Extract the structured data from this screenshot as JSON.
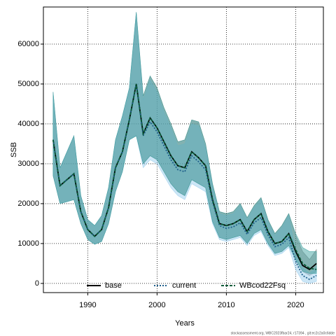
{
  "chart_data": {
    "type": "line",
    "x_label": "Years",
    "y_label": "SSB",
    "footnote": "stockassessment.org, WBC2023fbar24, r17394 , git:ec2c2a0c6dde",
    "x": [
      1985,
      1986,
      1987,
      1988,
      1989,
      1990,
      1991,
      1992,
      1993,
      1994,
      1995,
      1996,
      1997,
      1998,
      1999,
      2000,
      2001,
      2002,
      2003,
      2004,
      2005,
      2006,
      2007,
      2008,
      2009,
      2010,
      2011,
      2012,
      2013,
      2014,
      2015,
      2016,
      2017,
      2018,
      2019,
      2020,
      2021,
      2022,
      2023
    ],
    "xlim": [
      1983.6,
      2024.0
    ],
    "xticks": [
      1990,
      2000,
      2010,
      2020
    ],
    "ylim": [
      -2300,
      69300
    ],
    "yticks": [
      0,
      10000,
      20000,
      30000,
      40000,
      50000,
      60000
    ],
    "grid": true,
    "legend": "bottom",
    "series": [
      {
        "name": "base",
        "color": "#000000",
        "band_color": "#808080",
        "dash": "solid",
        "values": [
          36000,
          24500,
          26000,
          27500,
          18000,
          13500,
          11800,
          13500,
          19000,
          29000,
          33000,
          41000,
          50000,
          37500,
          41500,
          39000,
          35500,
          32000,
          29500,
          29000,
          33000,
          31500,
          29500,
          21000,
          15000,
          14500,
          15000,
          16000,
          13000,
          16000,
          17500,
          13000,
          10000,
          10500,
          12500,
          8000,
          4500,
          3500,
          5000
        ],
        "lower": [
          27000,
          20000,
          20500,
          21000,
          15000,
          11000,
          9800,
          10500,
          15000,
          23000,
          28000,
          36000,
          37000,
          30000,
          32000,
          31000,
          28000,
          25000,
          23000,
          22000,
          26000,
          25000,
          24000,
          15500,
          11500,
          11000,
          11500,
          12000,
          10000,
          12500,
          13500,
          10000,
          7500,
          8000,
          9500,
          6000,
          3000,
          2000,
          3000
        ],
        "upper": [
          48000,
          29000,
          33000,
          37000,
          22000,
          16000,
          14500,
          17000,
          24000,
          36000,
          42000,
          49000,
          68000,
          47000,
          52000,
          49000,
          44000,
          40000,
          35500,
          36000,
          41000,
          40500,
          35000,
          25000,
          18000,
          17500,
          18000,
          20000,
          16500,
          19500,
          21500,
          16000,
          12500,
          14500,
          17500,
          12000,
          8000,
          6000,
          8500
        ]
      },
      {
        "name": "current",
        "color": "#1f5f8b",
        "band_color": "#8ec8ea",
        "dash": "dotted",
        "values": [
          36000,
          24500,
          26000,
          27500,
          18000,
          13500,
          11800,
          13500,
          19000,
          29000,
          33000,
          41000,
          50000,
          37000,
          40500,
          38000,
          34500,
          31000,
          28500,
          28000,
          32000,
          30500,
          28500,
          20500,
          14500,
          13800,
          14200,
          15200,
          12300,
          15200,
          16500,
          12200,
          9200,
          9800,
          11500,
          5500,
          2000,
          1000,
          2000
        ],
        "lower": [
          27000,
          20000,
          20500,
          21000,
          15000,
          11000,
          9800,
          10500,
          15000,
          23000,
          28000,
          36000,
          37000,
          29000,
          31000,
          30000,
          27000,
          24000,
          22000,
          21000,
          25000,
          24000,
          23000,
          15000,
          11000,
          10500,
          11000,
          11500,
          9500,
          12000,
          13000,
          9500,
          7000,
          7500,
          9000,
          3500,
          500,
          0,
          500
        ],
        "upper": [
          48000,
          29000,
          33000,
          37000,
          22000,
          16000,
          14500,
          17000,
          24000,
          36000,
          42000,
          49000,
          68000,
          46000,
          51000,
          48000,
          43000,
          39000,
          34500,
          35000,
          40000,
          39500,
          34000,
          24500,
          17500,
          17000,
          17500,
          19500,
          16000,
          19000,
          21000,
          15500,
          12000,
          14000,
          17000,
          8000,
          4000,
          2500,
          4000
        ]
      },
      {
        "name": "WBcod22Fsq",
        "color": "#0b5c3a",
        "band_color": "#2e9a96",
        "dash": "dashed",
        "values": [
          36000,
          24500,
          26000,
          27500,
          18000,
          13500,
          11800,
          13500,
          19000,
          29000,
          33000,
          41000,
          50000,
          37500,
          41500,
          39000,
          35500,
          32000,
          29500,
          29000,
          33000,
          31500,
          29500,
          21000,
          15000,
          14500,
          15000,
          16000,
          13000,
          16000,
          17500,
          13000,
          10000,
          10500,
          12500,
          8500,
          5000,
          3800,
          3500
        ],
        "lower": [
          27000,
          20000,
          20500,
          21000,
          15000,
          11000,
          9800,
          10500,
          15000,
          23000,
          28000,
          36000,
          37000,
          30000,
          32000,
          31000,
          28000,
          25000,
          23000,
          22000,
          26000,
          25000,
          24000,
          15500,
          11500,
          11000,
          11500,
          12000,
          10000,
          12500,
          13500,
          10000,
          7500,
          8000,
          9500,
          6000,
          3000,
          2500,
          2500
        ],
        "upper": [
          48000,
          29000,
          33000,
          37000,
          22000,
          16000,
          14500,
          17000,
          24000,
          36000,
          42000,
          49000,
          68000,
          47000,
          52000,
          49000,
          44000,
          40000,
          35500,
          36000,
          41000,
          40500,
          35000,
          25000,
          18000,
          17500,
          18000,
          20000,
          16500,
          19500,
          21500,
          16000,
          12500,
          14500,
          17500,
          12500,
          9000,
          8000,
          8000
        ]
      }
    ]
  }
}
